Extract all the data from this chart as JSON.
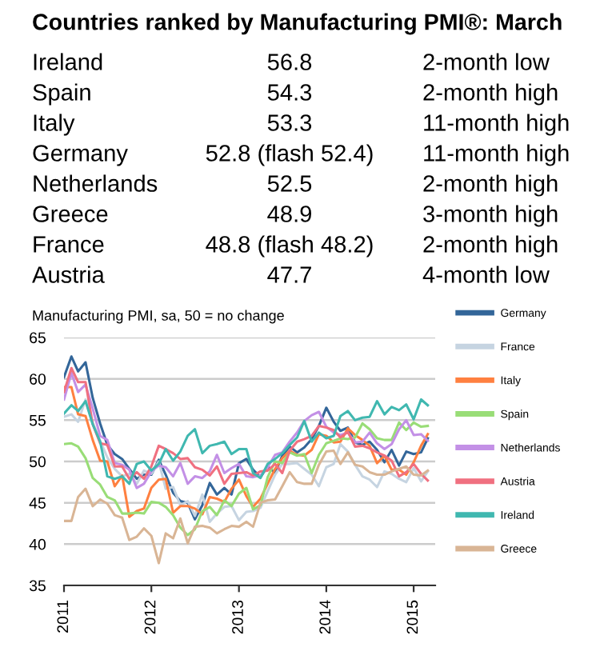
{
  "chart_data": [
    {
      "type": "other",
      "title": "Countries ranked by Manufacturing PMI®: March",
      "categories": [
        "Ireland",
        "Spain",
        "Italy",
        "Germany",
        "Netherlands",
        "Greece",
        "France",
        "Austria"
      ],
      "value_labels": [
        "56.8",
        "54.3",
        "53.3",
        "52.8 (flash 52.4)",
        "52.5",
        "48.9",
        "48.8 (flash 48.2)",
        "47.7"
      ],
      "annotations": [
        "2-month low",
        "2-month high",
        "11-month high",
        "11-month high",
        "2-month high",
        "3-month high",
        "2-month high",
        "4-month low"
      ]
    },
    {
      "type": "line",
      "title": "Manufacturing PMI, sa, 50 = no change",
      "x": [
        "2011-01",
        "2011-02",
        "2011-03",
        "2011-04",
        "2011-05",
        "2011-06",
        "2011-07",
        "2011-08",
        "2011-09",
        "2011-10",
        "2011-11",
        "2011-12",
        "2012-01",
        "2012-02",
        "2012-03",
        "2012-04",
        "2012-05",
        "2012-06",
        "2012-07",
        "2012-08",
        "2012-09",
        "2012-10",
        "2012-11",
        "2012-12",
        "2013-01",
        "2013-02",
        "2013-03",
        "2013-04",
        "2013-05",
        "2013-06",
        "2013-07",
        "2013-08",
        "2013-09",
        "2013-10",
        "2013-11",
        "2013-12",
        "2014-01",
        "2014-02",
        "2014-03",
        "2014-04",
        "2014-05",
        "2014-06",
        "2014-07",
        "2014-08",
        "2014-09",
        "2014-10",
        "2014-11",
        "2014-12",
        "2015-01",
        "2015-02",
        "2015-03"
      ],
      "xlim": [
        "2011-01",
        "2015-04"
      ],
      "xticks": [
        "2011",
        "2012",
        "2013",
        "2014",
        "2015"
      ],
      "ylim": [
        35,
        65
      ],
      "yticks": [
        35,
        40,
        45,
        50,
        55,
        60,
        65
      ],
      "grid": "y",
      "legend": "right",
      "marker": "none",
      "line_style": "solid",
      "series": [
        {
          "name": "Germany",
          "color": "#336699",
          "values": [
            60.2,
            62.7,
            60.9,
            62.0,
            57.7,
            54.6,
            52.0,
            50.9,
            50.3,
            49.1,
            47.9,
            48.4,
            48.4,
            50.2,
            48.4,
            46.2,
            45.2,
            45.0,
            43.0,
            44.7,
            47.4,
            46.0,
            46.8,
            46.0,
            49.8,
            50.3,
            49.0,
            48.1,
            49.4,
            48.6,
            50.7,
            51.8,
            51.1,
            51.7,
            52.7,
            54.3,
            56.5,
            54.8,
            53.7,
            54.1,
            52.3,
            52.0,
            52.4,
            51.4,
            49.9,
            51.4,
            49.5,
            51.2,
            50.9,
            51.1,
            52.8
          ]
        },
        {
          "name": "France",
          "color": "#c6d4e1",
          "values": [
            55.4,
            55.7,
            54.8,
            57.5,
            54.7,
            52.5,
            50.5,
            49.1,
            48.2,
            48.5,
            47.3,
            48.9,
            48.5,
            50.0,
            46.7,
            46.9,
            44.7,
            45.2,
            43.4,
            46.0,
            42.7,
            43.7,
            44.5,
            44.6,
            42.9,
            43.9,
            44.0,
            44.4,
            46.4,
            48.4,
            49.7,
            49.7,
            49.8,
            49.1,
            48.4,
            47.0,
            49.3,
            49.7,
            52.1,
            51.2,
            49.6,
            48.2,
            47.8,
            46.9,
            48.8,
            48.5,
            47.9,
            47.5,
            49.2,
            47.6,
            48.8
          ]
        },
        {
          "name": "Italy",
          "color": "#ff8040",
          "values": [
            59.0,
            59.0,
            55.7,
            55.5,
            52.6,
            50.1,
            50.0,
            47.0,
            48.3,
            43.3,
            44.0,
            44.3,
            46.8,
            47.8,
            47.9,
            43.8,
            44.6,
            44.6,
            44.3,
            43.6,
            45.7,
            45.5,
            45.1,
            46.7,
            47.8,
            45.8,
            44.5,
            45.5,
            47.3,
            49.1,
            50.4,
            51.3,
            50.8,
            50.7,
            51.4,
            53.3,
            53.1,
            52.3,
            52.4,
            54.0,
            53.2,
            52.6,
            51.9,
            49.8,
            50.7,
            49.0,
            49.0,
            48.4,
            49.9,
            51.9,
            53.3
          ]
        },
        {
          "name": "Spain",
          "color": "#99dd77",
          "values": [
            52.1,
            52.2,
            51.8,
            50.4,
            48.0,
            47.2,
            45.7,
            45.3,
            43.7,
            43.7,
            43.8,
            43.7,
            45.1,
            45.0,
            44.5,
            43.5,
            42.0,
            41.1,
            41.8,
            44.0,
            44.5,
            43.5,
            45.3,
            44.6,
            46.1,
            46.8,
            44.2,
            44.7,
            48.1,
            50.0,
            49.8,
            51.1,
            50.7,
            50.9,
            48.6,
            50.8,
            52.2,
            52.5,
            52.8,
            52.7,
            52.9,
            54.6,
            53.9,
            52.8,
            52.6,
            52.6,
            54.7,
            53.8,
            54.7,
            54.2,
            54.3
          ]
        },
        {
          "name": "Netherlands",
          "color": "#c390e6",
          "values": [
            57.5,
            60.7,
            58.4,
            59.3,
            56.4,
            53.1,
            52.6,
            49.8,
            49.6,
            49.0,
            46.8,
            47.3,
            48.8,
            49.5,
            49.3,
            48.2,
            49.8,
            47.3,
            48.2,
            48.0,
            48.8,
            50.8,
            48.6,
            49.2,
            49.7,
            48.2,
            48.1,
            48.3,
            49.3,
            50.8,
            51.1,
            52.4,
            53.5,
            54.9,
            55.6,
            56.0,
            54.2,
            53.5,
            53.2,
            53.5,
            52.3,
            52.4,
            53.5,
            52.2,
            51.5,
            52.1,
            53.9,
            55.0,
            53.2,
            53.3,
            52.5
          ]
        },
        {
          "name": "Austria",
          "color": "#f07080",
          "values": [
            58.4,
            61.3,
            59.6,
            59.6,
            54.5,
            52.2,
            52.0,
            49.4,
            49.4,
            47.9,
            48.7,
            47.9,
            49.4,
            51.9,
            51.5,
            51.0,
            50.3,
            50.4,
            49.3,
            49.0,
            48.3,
            49.4,
            47.3,
            48.5,
            48.6,
            48.7,
            48.3,
            48.8,
            48.9,
            49.7,
            48.6,
            51.3,
            52.4,
            52.7,
            53.1,
            54.3,
            54.1,
            53.8,
            52.9,
            53.6,
            51.8,
            51.9,
            51.6,
            51.1,
            50.7,
            50.1,
            48.2,
            48.7,
            49.7,
            48.5,
            47.7
          ]
        },
        {
          "name": "Ireland",
          "color": "#40b8b0",
          "values": [
            55.8,
            56.8,
            56.1,
            57.3,
            54.5,
            52.4,
            48.2,
            47.9,
            48.2,
            47.3,
            49.7,
            50.0,
            48.9,
            49.7,
            51.5,
            50.1,
            51.2,
            53.1,
            53.9,
            51.0,
            51.9,
            52.1,
            52.4,
            50.9,
            51.5,
            51.5,
            48.6,
            48.0,
            49.7,
            50.3,
            51.0,
            52.0,
            52.9,
            54.9,
            52.4,
            53.5,
            52.8,
            53.1,
            55.5,
            56.1,
            55.0,
            55.3,
            55.4,
            57.3,
            55.7,
            56.6,
            56.2,
            56.9,
            55.1,
            57.5,
            56.8
          ]
        },
        {
          "name": "Greece",
          "color": "#d9b595",
          "values": [
            42.8,
            42.8,
            45.7,
            46.7,
            44.6,
            45.4,
            44.9,
            43.5,
            43.2,
            40.5,
            40.9,
            41.9,
            41.0,
            37.7,
            41.3,
            40.7,
            43.1,
            40.1,
            42.1,
            42.2,
            42.0,
            41.3,
            41.8,
            42.2,
            42.1,
            42.7,
            42.1,
            45.0,
            45.3,
            45.4,
            47.0,
            48.7,
            47.5,
            47.3,
            47.3,
            49.6,
            51.2,
            51.3,
            49.7,
            51.1,
            49.6,
            49.4,
            48.7,
            48.4,
            48.4,
            48.8,
            49.1,
            49.4,
            48.4,
            48.3,
            48.9
          ]
        }
      ]
    }
  ]
}
